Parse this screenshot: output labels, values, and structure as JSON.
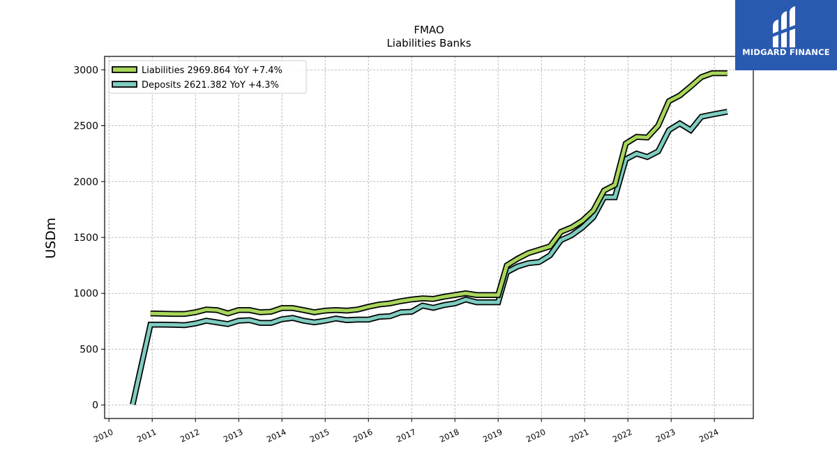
{
  "chart_data": {
    "type": "line",
    "title": "FMAO",
    "subtitle": "Liabilities Banks",
    "xlabel": "",
    "ylabel": "USDm",
    "xlim": [
      2009.9,
      2024.9
    ],
    "ylim": [
      -120,
      3120
    ],
    "x_ticks": [
      2010,
      2011,
      2012,
      2013,
      2014,
      2015,
      2016,
      2017,
      2018,
      2019,
      2020,
      2021,
      2022,
      2023,
      2024
    ],
    "y_ticks": [
      0,
      500,
      1000,
      1500,
      2000,
      2500,
      3000
    ],
    "grid": true,
    "legend_position": "top-left",
    "series": [
      {
        "name": "Liabilities",
        "legend_label": "Liabilities  2969.864 YoY +7.4%",
        "color": "#a8d65c",
        "x": [
          2010.96,
          2011.25,
          2011.5,
          2011.75,
          2012.0,
          2012.25,
          2012.5,
          2012.75,
          2013.0,
          2013.25,
          2013.5,
          2013.75,
          2014.0,
          2014.25,
          2014.5,
          2014.75,
          2015.0,
          2015.25,
          2015.5,
          2015.75,
          2016.0,
          2016.25,
          2016.5,
          2016.75,
          2017.0,
          2017.25,
          2017.5,
          2017.75,
          2018.0,
          2018.25,
          2018.5,
          2018.75,
          2019.0,
          2019.2,
          2019.45,
          2019.7,
          2019.95,
          2020.2,
          2020.45,
          2020.7,
          2020.95,
          2021.2,
          2021.45,
          2021.7,
          2021.95,
          2022.2,
          2022.45,
          2022.7,
          2022.95,
          2023.2,
          2023.45,
          2023.7,
          2023.95,
          2024.3
        ],
        "y": [
          820,
          818,
          815,
          815,
          830,
          855,
          850,
          820,
          850,
          850,
          830,
          835,
          868,
          868,
          850,
          830,
          845,
          850,
          845,
          855,
          880,
          900,
          910,
          930,
          945,
          955,
          950,
          970,
          985,
          1000,
          985,
          985,
          985,
          1250,
          1310,
          1360,
          1390,
          1420,
          1550,
          1590,
          1650,
          1740,
          1920,
          1970,
          2340,
          2400,
          2395,
          2500,
          2720,
          2770,
          2850,
          2935,
          2970,
          2970
        ]
      },
      {
        "name": "Deposits",
        "legend_label": "Deposits  2621.382 YoY +4.3%",
        "color": "#7ecdc0",
        "x": [
          2010.55,
          2010.96,
          2011.25,
          2011.5,
          2011.75,
          2012.0,
          2012.25,
          2012.5,
          2012.75,
          2013.0,
          2013.25,
          2013.5,
          2013.75,
          2014.0,
          2014.25,
          2014.5,
          2014.75,
          2015.0,
          2015.25,
          2015.5,
          2015.75,
          2016.0,
          2016.25,
          2016.5,
          2016.75,
          2017.0,
          2017.25,
          2017.5,
          2017.75,
          2018.0,
          2018.25,
          2018.5,
          2018.75,
          2019.0,
          2019.2,
          2019.45,
          2019.7,
          2019.95,
          2020.2,
          2020.45,
          2020.7,
          2020.95,
          2021.2,
          2021.45,
          2021.7,
          2021.95,
          2022.2,
          2022.45,
          2022.7,
          2022.95,
          2023.2,
          2023.45,
          2023.7,
          2023.95,
          2024.3
        ],
        "y": [
          5,
          720,
          720,
          718,
          715,
          730,
          755,
          740,
          725,
          755,
          760,
          735,
          735,
          768,
          780,
          755,
          740,
          755,
          775,
          760,
          765,
          765,
          790,
          795,
          830,
          835,
          890,
          870,
          895,
          910,
          945,
          920,
          920,
          920,
          1190,
          1240,
          1270,
          1280,
          1340,
          1475,
          1520,
          1590,
          1680,
          1860,
          1860,
          2200,
          2250,
          2220,
          2270,
          2460,
          2520,
          2460,
          2580,
          2600,
          2625
        ]
      }
    ]
  },
  "logo": {
    "text": "MIDGARD FINANCE",
    "icon": "midgard-finance-logo-icon",
    "background": "#2a5ab0"
  }
}
